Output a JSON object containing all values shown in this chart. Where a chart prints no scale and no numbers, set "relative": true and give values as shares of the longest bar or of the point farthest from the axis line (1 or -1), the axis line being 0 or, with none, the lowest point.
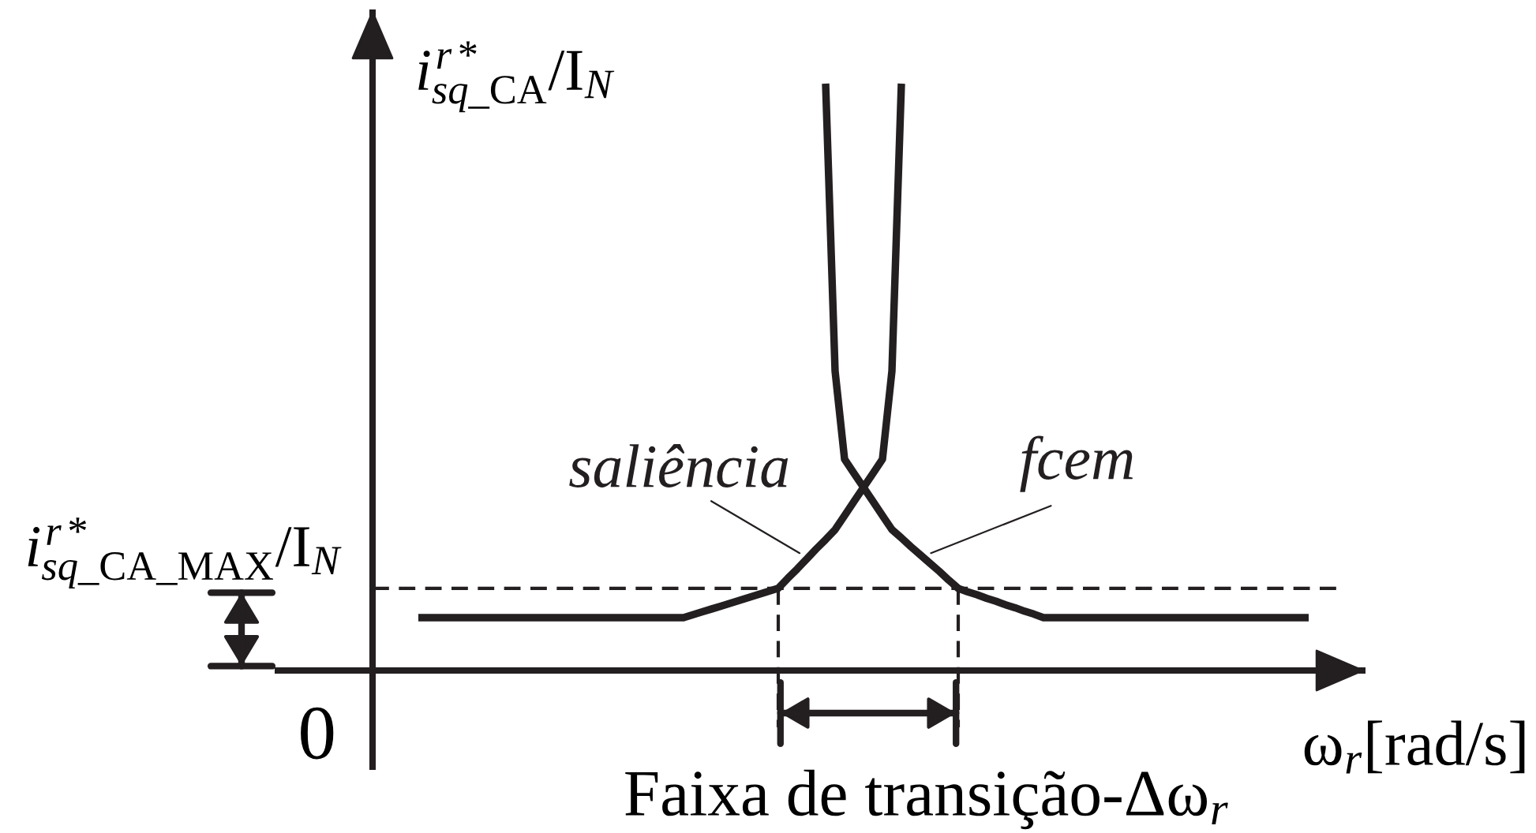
{
  "chart_data": {
    "type": "line",
    "relative": true,
    "ylabel": "i$^{r*}$$_{sq_CA}$/I$_{N}$",
    "xlabel": "ω$_{r}$[rad/s]",
    "line_style": "solid",
    "categories": [
      null,
      null,
      null,
      null,
      null,
      null,
      null,
      null,
      null,
      null,
      null,
      null,
      null,
      null,
      null,
      null,
      null,
      null,
      null,
      null,
      null,
      null,
      null,
      null,
      null,
      null,
      null,
      null,
      null,
      null,
      null,
      null,
      null,
      null,
      null,
      null,
      null,
      null,
      null,
      null,
      null,
      null,
      null,
      null,
      null,
      null,
      null,
      null,
      null,
      null,
      null,
      null,
      null,
      null,
      null,
      null,
      null,
      null,
      null,
      null,
      null,
      null,
      null,
      null,
      null,
      null,
      null,
      null,
      null,
      null,
      null,
      null,
      null,
      null,
      null,
      null,
      null,
      null,
      null,
      null,
      null,
      null,
      null,
      null,
      null,
      null,
      null,
      null,
      null,
      null,
      null,
      null,
      null,
      null,
      null
    ],
    "series": [
      {
        "name": "saliência",
        "color": "#231f20",
        "values": [
          0.09,
          0.09,
          0.09,
          0.09,
          0.09,
          0.09,
          0.09,
          0.09,
          0.09,
          0.09,
          0.09,
          0.09,
          0.09,
          0.09,
          0.09,
          0.09,
          0.09,
          0.09,
          0.09,
          0.09,
          0.09,
          0.09,
          0.09,
          0.09,
          0.09,
          0.09,
          0.09,
          0.09,
          0.09,
          0.095,
          0.1,
          0.105,
          0.11,
          0.115,
          0.12,
          0.125,
          0.13,
          0.135,
          0.14,
          0.157,
          0.173,
          0.19,
          0.207,
          0.223,
          0.24,
          0.264,
          0.288,
          0.312,
          0.336,
          0.36,
          0.51,
          1,
          null,
          null,
          null,
          null,
          null,
          null,
          null,
          null,
          null,
          null,
          null,
          null,
          null,
          null,
          null,
          null,
          null,
          null,
          null,
          null,
          null,
          null,
          null,
          null,
          null,
          null,
          null,
          null,
          null,
          null,
          null,
          null,
          null,
          null,
          null,
          null,
          null,
          null,
          null,
          null,
          null,
          null,
          null
        ]
      },
      {
        "name": "fcem",
        "color": "#231f20",
        "values": [
          null,
          null,
          null,
          null,
          null,
          null,
          null,
          null,
          null,
          null,
          null,
          null,
          null,
          null,
          null,
          null,
          null,
          null,
          null,
          null,
          null,
          null,
          null,
          null,
          null,
          null,
          null,
          null,
          null,
          null,
          null,
          null,
          null,
          null,
          null,
          null,
          null,
          null,
          null,
          null,
          null,
          null,
          null,
          1,
          0.51,
          0.36,
          0.336,
          0.312,
          0.288,
          0.264,
          0.24,
          0.226,
          0.211,
          0.197,
          0.183,
          0.169,
          0.154,
          0.14,
          0.134,
          0.129,
          0.123,
          0.118,
          0.112,
          0.107,
          0.101,
          0.096,
          0.09,
          0.09,
          0.09,
          0.09,
          0.09,
          0.09,
          0.09,
          0.09,
          0.09,
          0.09,
          0.09,
          0.09,
          0.09,
          0.09,
          0.09,
          0.09,
          0.09,
          0.09,
          0.09,
          0.09,
          0.09,
          0.09,
          0.09,
          0.09,
          0.09,
          0.09,
          0.09,
          0.09,
          0.09
        ]
      }
    ],
    "ref_lines": [
      {
        "axis": "y",
        "value": 0.14,
        "label": "i$^{r*}$$_{sq_CA_MAX}$/I$_{N}$",
        "line_style": "dashed",
        "color": "#231f20"
      }
    ],
    "annotations": [
      "0",
      "Faixa de transição-Δω$_{r}$"
    ]
  }
}
